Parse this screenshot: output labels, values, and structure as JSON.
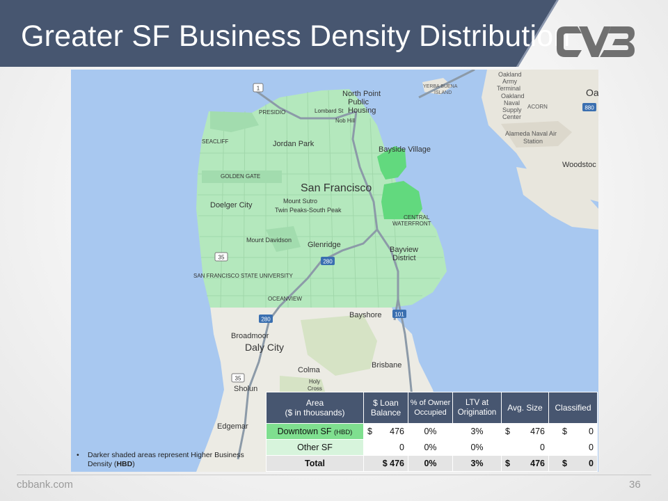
{
  "slide": {
    "title": "Greater SF Business Density Distribution",
    "footer_url": "cbbank.com",
    "page_number": "36",
    "accent_color": "#475670"
  },
  "logo": {
    "name": "cvb-logo-icon",
    "color": "#6f6f6f"
  },
  "map": {
    "labels": {
      "north_point": "North Point",
      "public_housing": "Public",
      "public_housing2": "Housing",
      "nob_hill": "Nob Hill",
      "lombard": "Lombard St",
      "presidio": "PRESIDIO",
      "seacliff": "SEACLIFF",
      "jordan_park": "Jordan Park",
      "bayside": "Bayside Village",
      "golden_gate": "GOLDEN GATE",
      "san_francisco": "San Francisco",
      "doelger": "Doelger City",
      "mount_sutro": "Mount Sutro",
      "twin_peaks": "Twin Peaks-South Peak",
      "central_waterfront": "CENTRAL",
      "central_waterfront2": "WATERFRONT",
      "mount_davidson": "Mount Davidson",
      "glenridge": "Glenridge",
      "bayview": "Bayview",
      "district": "District",
      "sfsu": "SAN FRANCISCO STATE UNIVERSITY",
      "oceanview": "OCEANVIEW",
      "bayshore": "Bayshore",
      "broadmoor": "Broadmoor",
      "daly_city": "Daly City",
      "brisbane": "Brisbane",
      "colma": "Colma",
      "holy": "Holy",
      "cross": "Cross",
      "sholun": "Sholun",
      "edgemar": "Edgemar",
      "yerba": "YERBA BUENA",
      "island": "ISLAND",
      "oakland": "Oakland",
      "army": "Army",
      "terminal": "Terminal",
      "oakland2": "Oakland",
      "naval": "Naval",
      "supply": "Supply",
      "center": "Center",
      "acorn": "ACORN",
      "alameda": "Alameda Naval Air",
      "station": "Station",
      "woodstock": "Woodstoc",
      "oa": "Oa",
      "hwy1": "1",
      "hwy35": "35",
      "hwy35b": "35",
      "hwy280": "280",
      "hwy280b": "280",
      "hwy101": "101",
      "hwy80": "880"
    }
  },
  "note": {
    "bullet": "•",
    "text_before": "Darker shaded areas represent Higher Business Density (",
    "text_bold": "HBD",
    "text_after": ")"
  },
  "table": {
    "headers": {
      "area": "Area",
      "area_sub": "($ in thousands)",
      "loan": "$ Loan",
      "loan_sub": "Balance",
      "owner": "% of Owner Occupied",
      "ltv": "LTV at Origination",
      "avg": "Avg. Size",
      "classified": "Classified"
    },
    "rows": [
      {
        "area": "Downtown SF",
        "area_tag": "(HBD)",
        "loan_sym": "$",
        "loan": "476",
        "owner": "0%",
        "ltv": "3%",
        "avg_sym": "$",
        "avg": "476",
        "cls_sym": "$",
        "cls": "0"
      },
      {
        "area": "Other SF",
        "area_tag": "",
        "loan_sym": "",
        "loan": "0",
        "owner": "0%",
        "ltv": "0%",
        "avg_sym": "",
        "avg": "0",
        "cls_sym": "",
        "cls": "0"
      },
      {
        "area": "Total",
        "area_tag": "",
        "loan_sym": "",
        "loan": "$ 476",
        "owner": "0%",
        "ltv": "3%",
        "avg_sym": "$",
        "avg": "476",
        "cls_sym": "$",
        "cls": "0"
      }
    ]
  }
}
